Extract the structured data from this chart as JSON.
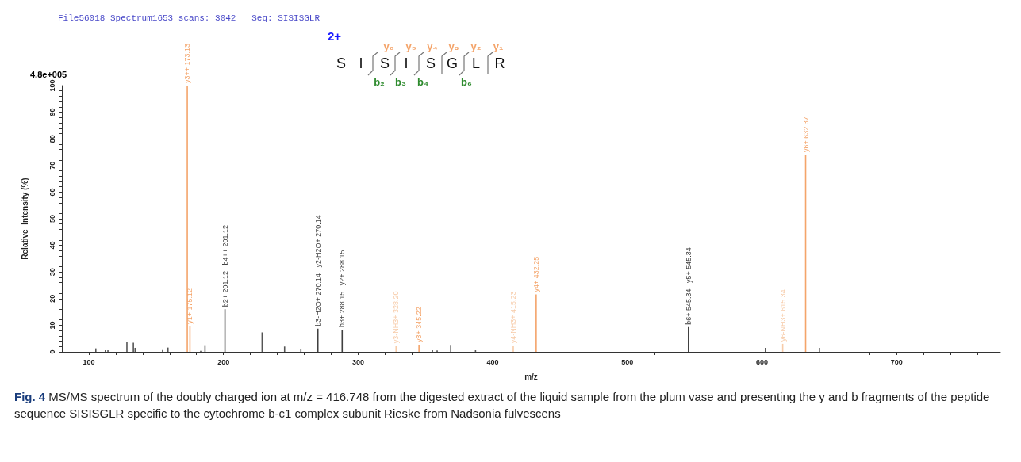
{
  "chart_data": {
    "type": "bar",
    "title": "File56018 Spectrum1653 scans: 3042   Seq: SISISGLR",
    "xlabel": "m/z",
    "ylabel": "Relative  Intensity (%)",
    "annotations": [
      "4.8e+005",
      "Fig. 4",
      "MS/MS spectrum of the doubly charged ion at m/z = 416.748 from the digested extract of the liquid sample from the plum vase and presenting the y and b fragments of the peptide sequence SISISGLR specific to the cytochrome b-c1 complex subunit Rieske from Nadsonia fulvescens",
      "2+",
      "S",
      "I",
      "S",
      "I",
      "S",
      "G",
      "L",
      "R",
      "y₆",
      "y₅",
      "y₄",
      "y₃",
      "y₂",
      "y₁",
      "b₂",
      "b₃",
      "b₄",
      "b₆"
    ],
    "xlim": [
      80,
      777
    ],
    "xticks": [
      100,
      {
        "value": 120,
        "label": null
      },
      {
        "value": 140,
        "label": null
      },
      {
        "value": 160,
        "label": null
      },
      {
        "value": 180,
        "label": null
      },
      200,
      {
        "value": 220,
        "label": null
      },
      {
        "value": 240,
        "label": null
      },
      {
        "value": 260,
        "label": null
      },
      {
        "value": 280,
        "label": null
      },
      300,
      {
        "value": 320,
        "label": null
      },
      {
        "value": 340,
        "label": null
      },
      {
        "value": 360,
        "label": null
      },
      {
        "value": 380,
        "label": null
      },
      400,
      {
        "value": 420,
        "label": null
      },
      {
        "value": 440,
        "label": null
      },
      {
        "value": 460,
        "label": null
      },
      {
        "value": 480,
        "label": null
      },
      500,
      {
        "value": 520,
        "label": null
      },
      {
        "value": 540,
        "label": null
      },
      {
        "value": 560,
        "label": null
      },
      {
        "value": 580,
        "label": null
      },
      600,
      {
        "value": 620,
        "label": null
      },
      {
        "value": 640,
        "label": null
      },
      {
        "value": 660,
        "label": null
      },
      {
        "value": 680,
        "label": null
      },
      700,
      {
        "value": 720,
        "label": null
      },
      {
        "value": 740,
        "label": null
      },
      {
        "value": 760,
        "label": null
      }
    ],
    "ylim": [
      0,
      100
    ],
    "yticks": [
      0,
      {
        "value": 2,
        "label": null
      },
      {
        "value": 4,
        "label": null
      },
      {
        "value": 6,
        "label": null
      },
      {
        "value": 8,
        "label": null
      },
      10,
      {
        "value": 12,
        "label": null
      },
      {
        "value": 14,
        "label": null
      },
      {
        "value": 16,
        "label": null
      },
      {
        "value": 18,
        "label": null
      },
      20,
      {
        "value": 22,
        "label": null
      },
      {
        "value": 24,
        "label": null
      },
      {
        "value": 26,
        "label": null
      },
      {
        "value": 28,
        "label": null
      },
      30,
      {
        "value": 32,
        "label": null
      },
      {
        "value": 34,
        "label": null
      },
      {
        "value": 36,
        "label": null
      },
      {
        "value": 38,
        "label": null
      },
      40,
      {
        "value": 42,
        "label": null
      },
      {
        "value": 44,
        "label": null
      },
      {
        "value": 46,
        "label": null
      },
      {
        "value": 48,
        "label": null
      },
      50,
      {
        "value": 52,
        "label": null
      },
      {
        "value": 54,
        "label": null
      },
      {
        "value": 56,
        "label": null
      },
      {
        "value": 58,
        "label": null
      },
      60,
      {
        "value": 62,
        "label": null
      },
      {
        "value": 64,
        "label": null
      },
      {
        "value": 66,
        "label": null
      },
      {
        "value": 68,
        "label": null
      },
      70,
      {
        "value": 72,
        "label": null
      },
      {
        "value": 74,
        "label": null
      },
      {
        "value": 76,
        "label": null
      },
      {
        "value": 78,
        "label": null
      },
      80,
      {
        "value": 82,
        "label": null
      },
      {
        "value": 84,
        "label": null
      },
      {
        "value": 86,
        "label": null
      },
      {
        "value": 88,
        "label": null
      },
      90,
      {
        "value": 92,
        "label": null
      },
      {
        "value": 94,
        "label": null
      },
      {
        "value": 96,
        "label": null
      },
      {
        "value": 98,
        "label": null
      },
      100
    ],
    "grid": false,
    "series": [
      {
        "color": "#f4a46a",
        "x": [
          173.13,
          175.12,
          345.22,
          432.25,
          632.37
        ],
        "values": [
          100,
          9.6,
          2.7,
          21.6,
          74.1
        ],
        "value_labels": [
          "y3++ 173.13",
          "y1+ 175.12",
          "y3+ 345.22",
          "y4+ 432.25",
          "y6+ 632.37"
        ]
      },
      {
        "color": "#f7cba8",
        "x": [
          328.2,
          415.23,
          615.34
        ],
        "values": [
          2.3,
          2.3,
          3.0
        ],
        "value_labels": [
          "y3-NH3+ 328.20",
          "y4-NH3+ 415.23",
          "y6-NH3+ 615.34"
        ]
      },
      {
        "color": "#404040",
        "x": [
          201.12,
          270.14,
          288.15,
          545.34
        ],
        "values": [
          16.0,
          8.7,
          8.3,
          9.3
        ],
        "value_labels": [
          "b2+ 201.12   b4++ 201.12",
          "b3-H2O+ 270.14   y2-H2O+ 270.14",
          "b3+ 288.15   y2+ 288.15",
          "b6+ 545.34   y5+ 545.34"
        ]
      },
      {
        "color": "#555555",
        "x": [
          105.2,
          112.3,
          114.2,
          128.3,
          133.1,
          134.4,
          154.8,
          158.8,
          183.1,
          186.3,
          228.7,
          245.4,
          257.5,
          355.2,
          358.7,
          368.8,
          387.2,
          528.0,
          602.5,
          642.6
        ],
        "values": [
          1.3,
          0.6,
          0.6,
          3.9,
          3.4,
          1.5,
          0.7,
          1.6,
          0.4,
          2.5,
          7.3,
          2.0,
          1.0,
          0.6,
          0.5,
          2.6,
          0.6,
          null,
          1.5,
          1.5
        ]
      }
    ]
  }
}
